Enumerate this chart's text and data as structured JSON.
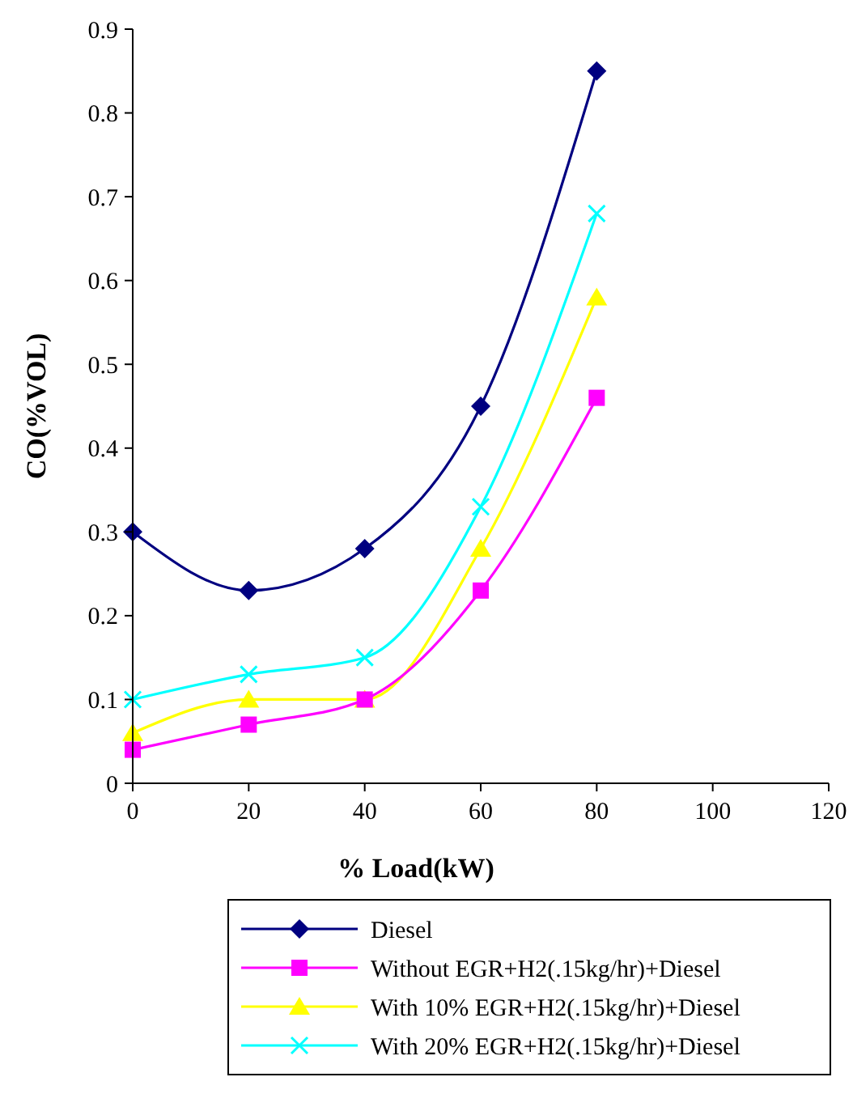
{
  "chart_data": {
    "type": "line",
    "xlabel": "% Load(kW)",
    "ylabel": "CO(%VOL)",
    "x": [
      0,
      20,
      40,
      60,
      80
    ],
    "series": [
      {
        "name": "Diesel",
        "color": "#000080",
        "marker": "diamond",
        "values": [
          0.3,
          0.23,
          0.28,
          0.45,
          0.85
        ]
      },
      {
        "name": "Without EGR+H2(.15kg/hr)+Diesel",
        "color": "#ff00ff",
        "marker": "square",
        "values": [
          0.04,
          0.07,
          0.1,
          0.23,
          0.46
        ]
      },
      {
        "name": "With 10% EGR+H2(.15kg/hr)+Diesel",
        "color": "#ffff00",
        "marker": "triangle",
        "values": [
          0.06,
          0.1,
          0.1,
          0.28,
          0.58
        ]
      },
      {
        "name": "With 20% EGR+H2(.15kg/hr)+Diesel",
        "color": "#00ffff",
        "marker": "cross",
        "values": [
          0.1,
          0.13,
          0.15,
          0.33,
          0.68
        ]
      }
    ],
    "xlim": [
      0,
      120
    ],
    "xticks": [
      0,
      20,
      40,
      60,
      80,
      100,
      120
    ],
    "ylim": [
      0,
      0.9
    ],
    "yticks": [
      0,
      0.1,
      0.2,
      0.3,
      0.4,
      0.5,
      0.6,
      0.7,
      0.8,
      0.9
    ],
    "grid": false,
    "legend": "bottom",
    "line_style": "solid"
  }
}
